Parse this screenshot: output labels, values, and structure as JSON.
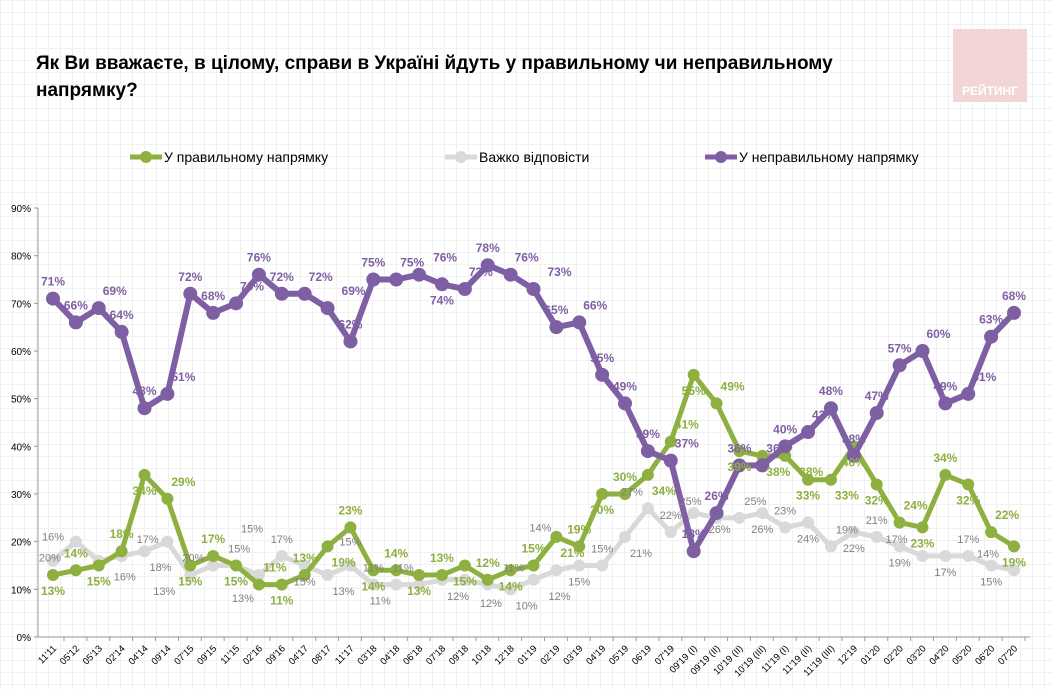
{
  "title": "Як Ви вважаєте, в цілому, справи в Україні йдуть у правильному чи неправильному напрямку?",
  "logo_text": "РЕЙТИНГ",
  "chart_data": {
    "type": "line",
    "title": "Як Ви вважаєте, в цілому, справи в Україні йдуть у правильному чи неправильному напрямку?",
    "ylim": [
      0,
      90
    ],
    "yticks": [
      "0%",
      "10%",
      "20%",
      "30%",
      "40%",
      "50%",
      "60%",
      "70%",
      "80%",
      "90%"
    ],
    "grid": true,
    "legend_placement": "top",
    "categories": [
      "11'11",
      "05'12",
      "05'13",
      "02'14",
      "04'14",
      "09'14",
      "07'15",
      "09'15",
      "11'15",
      "02'16",
      "09'16",
      "04'17",
      "08'17",
      "11'17",
      "03'18",
      "04'18",
      "06'18",
      "07'18",
      "09'18",
      "10'18",
      "12'18",
      "01'19",
      "02'19",
      "03'19",
      "04'19",
      "05'19",
      "06'19",
      "07'19",
      "09'19 (I)",
      "09'19 (II)",
      "10'19 (II)",
      "10'19 (III)",
      "11'19 (I)",
      "11'19 (II)",
      "11'19 (III)",
      "12'19",
      "01'20",
      "02'20",
      "03'20",
      "04'20",
      "05'20",
      "06'20",
      "07'20"
    ],
    "series": [
      {
        "name": "У правильному напрямку",
        "color": "#8db040",
        "values": [
          13,
          14,
          15,
          18,
          34,
          29,
          15,
          17,
          15,
          11,
          11,
          13,
          19,
          23,
          14,
          14,
          13,
          13,
          15,
          12,
          14,
          15,
          21,
          19,
          30,
          30,
          34,
          41,
          55,
          49,
          39,
          38,
          38,
          33,
          33,
          40,
          32,
          24,
          23,
          34,
          32,
          22,
          19
        ]
      },
      {
        "name": "Важко відповісти",
        "color": "#d9d9d9",
        "label_color": "#808080",
        "values": [
          16,
          20,
          16,
          17,
          18,
          20,
          13,
          15,
          15,
          13,
          17,
          15,
          13,
          15,
          11,
          11,
          11,
          12,
          12,
          11,
          10,
          12,
          14,
          15,
          15,
          21,
          27,
          22,
          26,
          25,
          25,
          26,
          23,
          24,
          19,
          22,
          21,
          19,
          17,
          17,
          17,
          15,
          14
        ]
      },
      {
        "name": "У неправильному напрямку",
        "color": "#7f5fa3",
        "values": [
          71,
          66,
          69,
          64,
          48,
          51,
          72,
          68,
          70,
          76,
          72,
          72,
          69,
          62,
          75,
          75,
          76,
          74,
          73,
          78,
          76,
          73,
          65,
          66,
          55,
          49,
          39,
          37,
          18,
          26,
          36,
          36,
          40,
          43,
          48,
          38,
          47,
          57,
          60,
          49,
          51,
          63,
          68
        ]
      }
    ]
  }
}
